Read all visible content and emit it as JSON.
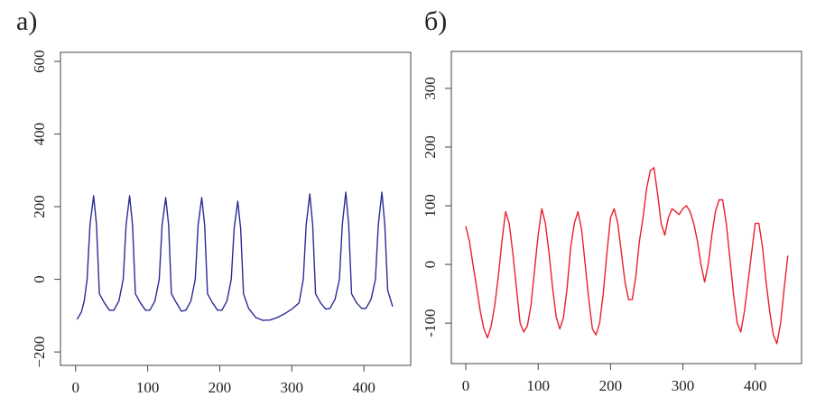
{
  "chart_data": [
    {
      "type": "line",
      "title": "а)",
      "color": "#2b2b96",
      "x": [
        2,
        8,
        12,
        16,
        20,
        25,
        29,
        33,
        40,
        47,
        53,
        60,
        66,
        70,
        75,
        79,
        83,
        90,
        97,
        103,
        110,
        116,
        120,
        125,
        129,
        133,
        140,
        147,
        153,
        160,
        166,
        170,
        175,
        179,
        183,
        190,
        197,
        203,
        210,
        216,
        220,
        225,
        229,
        233,
        240,
        250,
        260,
        270,
        280,
        290,
        300,
        310,
        316,
        320,
        325,
        329,
        333,
        340,
        347,
        353,
        360,
        366,
        370,
        375,
        379,
        383,
        390,
        397,
        403,
        410,
        416,
        420,
        425,
        429,
        433,
        440
      ],
      "values": [
        -110,
        -90,
        -60,
        0,
        150,
        230,
        150,
        -40,
        -65,
        -85,
        -85,
        -60,
        0,
        150,
        230,
        150,
        -40,
        -65,
        -85,
        -85,
        -60,
        0,
        150,
        225,
        150,
        -40,
        -65,
        -88,
        -85,
        -60,
        0,
        150,
        225,
        150,
        -40,
        -65,
        -85,
        -85,
        -60,
        0,
        140,
        215,
        140,
        -40,
        -80,
        -105,
        -113,
        -112,
        -105,
        -95,
        -82,
        -65,
        0,
        150,
        235,
        150,
        -40,
        -65,
        -82,
        -80,
        -55,
        0,
        150,
        240,
        150,
        -40,
        -65,
        -80,
        -80,
        -55,
        0,
        150,
        240,
        150,
        -30,
        -75
      ],
      "xlim": [
        -21,
        465
      ],
      "xticks": [
        0,
        100,
        200,
        300,
        400
      ],
      "ylim": [
        -237,
        625
      ],
      "yticks": [
        {
          "value": -200,
          "label": "−200"
        },
        0,
        200,
        400,
        600
      ]
    },
    {
      "type": "line",
      "title": "б)",
      "color": "#e8202a",
      "x": [
        0,
        5,
        10,
        15,
        20,
        25,
        30,
        35,
        40,
        45,
        50,
        55,
        60,
        65,
        70,
        75,
        80,
        85,
        90,
        95,
        100,
        105,
        110,
        115,
        120,
        125,
        130,
        135,
        140,
        145,
        150,
        155,
        160,
        165,
        170,
        175,
        180,
        185,
        190,
        195,
        200,
        205,
        210,
        215,
        220,
        225,
        230,
        235,
        240,
        245,
        250,
        255,
        260,
        265,
        270,
        275,
        280,
        285,
        290,
        295,
        300,
        305,
        310,
        315,
        320,
        325,
        330,
        335,
        340,
        345,
        350,
        355,
        360,
        365,
        370,
        375,
        380,
        385,
        390,
        395,
        400,
        405,
        410,
        415,
        420,
        425,
        430,
        435,
        440,
        445
      ],
      "values": [
        65,
        40,
        0,
        -40,
        -80,
        -110,
        -125,
        -105,
        -70,
        -20,
        40,
        90,
        70,
        20,
        -40,
        -100,
        -115,
        -105,
        -70,
        -10,
        50,
        95,
        70,
        20,
        -40,
        -90,
        -110,
        -90,
        -40,
        30,
        70,
        90,
        60,
        0,
        -60,
        -110,
        -120,
        -100,
        -50,
        20,
        80,
        95,
        70,
        20,
        -30,
        -60,
        -60,
        -20,
        40,
        80,
        130,
        160,
        165,
        120,
        70,
        50,
        80,
        95,
        90,
        85,
        95,
        100,
        90,
        70,
        40,
        0,
        -30,
        0,
        50,
        90,
        110,
        110,
        70,
        10,
        -50,
        -100,
        -115,
        -80,
        -30,
        20,
        70,
        70,
        30,
        -30,
        -80,
        -120,
        -135,
        -100,
        -40,
        15
      ],
      "xlim": [
        -20,
        464
      ],
      "xticks": [
        0,
        100,
        200,
        300,
        400
      ],
      "ylim": [
        -169,
        363
      ],
      "yticks": [
        -100,
        0,
        100,
        200,
        300
      ]
    }
  ]
}
